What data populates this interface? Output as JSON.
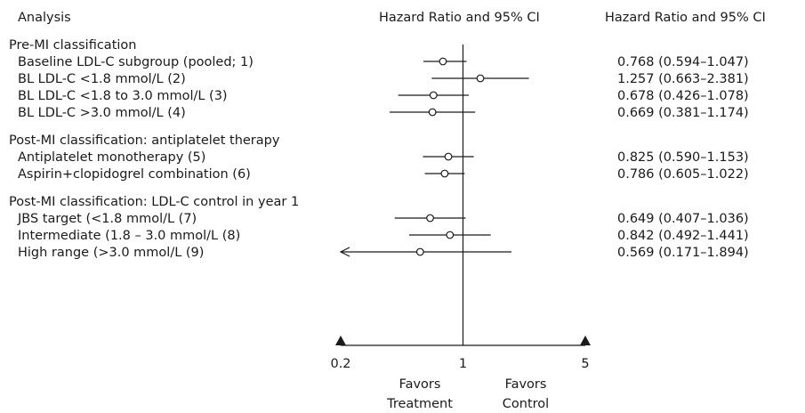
{
  "chart_data": {
    "type": "forest",
    "headers": {
      "analysis": "Analysis",
      "plot": "Hazard Ratio and 95% CI",
      "values": "Hazard Ratio and 95% CI"
    },
    "groups": [
      {
        "label": "Pre-MI classification",
        "rows": [
          {
            "label": "Baseline LDL-C subgroup (pooled; 1)",
            "hr": 0.768,
            "lo": 0.594,
            "hi": 1.047,
            "text": "0.768 (0.594–1.047)",
            "arrow_left": false
          },
          {
            "label": "BL LDL-C <1.8 mmol/L (2)",
            "hr": 1.257,
            "lo": 0.663,
            "hi": 2.381,
            "text": "1.257 (0.663–2.381)",
            "arrow_left": false
          },
          {
            "label": "BL LDL-C <1.8 to 3.0 mmol/L (3)",
            "hr": 0.678,
            "lo": 0.426,
            "hi": 1.078,
            "text": "0.678 (0.426–1.078)",
            "arrow_left": false
          },
          {
            "label": "BL LDL-C >3.0 mmol/L (4)",
            "hr": 0.669,
            "lo": 0.381,
            "hi": 1.174,
            "text": "0.669 (0.381–1.174)",
            "arrow_left": false
          }
        ]
      },
      {
        "label": "Post-MI classification: antiplatelet therapy",
        "rows": [
          {
            "label": "Antiplatelet monotherapy (5)",
            "hr": 0.825,
            "lo": 0.59,
            "hi": 1.153,
            "text": "0.825 (0.590–1.153)",
            "arrow_left": false
          },
          {
            "label": "Aspirin+clopidogrel combination (6)",
            "hr": 0.786,
            "lo": 0.605,
            "hi": 1.022,
            "text": "0.786 (0.605–1.022)",
            "arrow_left": false
          }
        ]
      },
      {
        "label": "Post-MI classification: LDL-C control in year 1",
        "rows": [
          {
            "label": "JBS target (<1.8 mmol/L (7)",
            "hr": 0.649,
            "lo": 0.407,
            "hi": 1.036,
            "text": "0.649 (0.407–1.036)",
            "arrow_left": false
          },
          {
            "label": "Intermediate (1.8 – 3.0 mmol/L (8)",
            "hr": 0.842,
            "lo": 0.492,
            "hi": 1.441,
            "text": "0.842 (0.492–1.441)",
            "arrow_left": false
          },
          {
            "label": "High range (>3.0 mmol/L (9)",
            "hr": 0.569,
            "lo": 0.171,
            "hi": 1.894,
            "text": "0.569 (0.171–1.894)",
            "arrow_left": true
          }
        ]
      }
    ],
    "x_axis": {
      "scale": "log",
      "range": [
        0.2,
        5
      ],
      "reference": 1,
      "ticks": [
        0.2,
        1,
        5
      ],
      "tick_labels": [
        "0.2",
        "1",
        "5"
      ]
    },
    "favors_left": [
      "Favors",
      "Treatment"
    ],
    "favors_right": [
      "Favors",
      "Control"
    ]
  }
}
